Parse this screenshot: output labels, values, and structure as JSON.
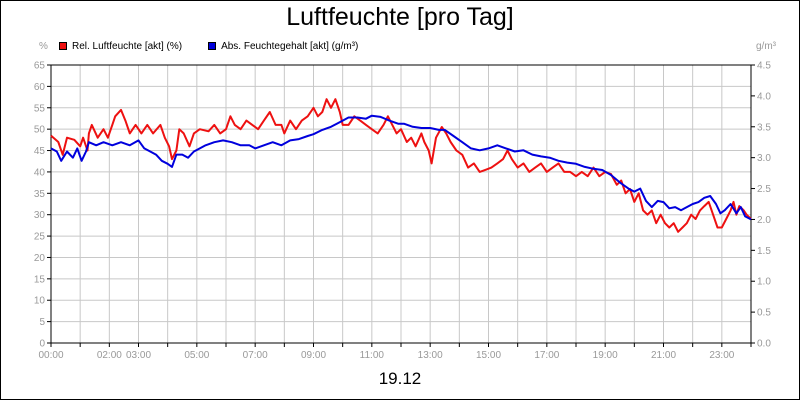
{
  "chart_data": {
    "type": "line",
    "title": "Luftfeuchte [pro Tag]",
    "date_label": "19.12",
    "left_unit": "%",
    "right_unit": "g/m³",
    "y_left": {
      "min": 0,
      "max": 65,
      "ticks": [
        0,
        5,
        10,
        15,
        20,
        25,
        30,
        35,
        40,
        45,
        50,
        55,
        60,
        65
      ]
    },
    "y_right": {
      "min": 0,
      "max": 4.5,
      "ticks": [
        "0.0",
        "0.5",
        "1.0",
        "1.5",
        "2.0",
        "2.5",
        "3.0",
        "3.5",
        "4.0",
        "4.5"
      ]
    },
    "x_range_hours": [
      0,
      24
    ],
    "x_tick_labels": [
      {
        "label": "00:00",
        "hour": 0
      },
      {
        "label": "02:00",
        "hour": 2
      },
      {
        "label": "03:00",
        "hour": 3
      },
      {
        "label": "05:00",
        "hour": 5
      },
      {
        "label": "07:00",
        "hour": 7
      },
      {
        "label": "09:00",
        "hour": 9
      },
      {
        "label": "11:00",
        "hour": 11
      },
      {
        "label": "13:00",
        "hour": 13
      },
      {
        "label": "15:00",
        "hour": 15
      },
      {
        "label": "17:00",
        "hour": 17
      },
      {
        "label": "19:00",
        "hour": 19
      },
      {
        "label": "21:00",
        "hour": 21
      },
      {
        "label": "23:00",
        "hour": 23
      }
    ],
    "grid": true,
    "legend_position": "top-left",
    "series": [
      {
        "name": "Rel. Luftfeuchte [akt] (%)",
        "axis": "left",
        "color": "#ee1111",
        "points": [
          [
            0,
            48.5
          ],
          [
            0.25,
            47
          ],
          [
            0.4,
            44
          ],
          [
            0.55,
            48
          ],
          [
            0.8,
            47.5
          ],
          [
            1.0,
            46
          ],
          [
            1.1,
            48
          ],
          [
            1.25,
            45
          ],
          [
            1.3,
            49
          ],
          [
            1.4,
            51
          ],
          [
            1.6,
            48
          ],
          [
            1.8,
            50
          ],
          [
            1.95,
            48
          ],
          [
            2.1,
            51
          ],
          [
            2.2,
            53
          ],
          [
            2.4,
            54.5
          ],
          [
            2.55,
            52
          ],
          [
            2.7,
            49
          ],
          [
            2.9,
            51
          ],
          [
            3.1,
            49
          ],
          [
            3.3,
            51
          ],
          [
            3.5,
            49
          ],
          [
            3.75,
            51
          ],
          [
            3.9,
            48
          ],
          [
            4.05,
            46
          ],
          [
            4.15,
            43
          ],
          [
            4.3,
            45
          ],
          [
            4.4,
            50
          ],
          [
            4.55,
            49
          ],
          [
            4.75,
            46
          ],
          [
            4.9,
            49
          ],
          [
            5.1,
            50
          ],
          [
            5.4,
            49.5
          ],
          [
            5.6,
            51
          ],
          [
            5.8,
            49
          ],
          [
            6.0,
            50
          ],
          [
            6.15,
            53
          ],
          [
            6.3,
            51
          ],
          [
            6.5,
            50
          ],
          [
            6.7,
            52
          ],
          [
            6.9,
            51
          ],
          [
            7.1,
            50
          ],
          [
            7.3,
            52
          ],
          [
            7.5,
            54
          ],
          [
            7.7,
            51
          ],
          [
            7.9,
            51
          ],
          [
            8.0,
            49
          ],
          [
            8.2,
            52
          ],
          [
            8.4,
            50
          ],
          [
            8.6,
            52
          ],
          [
            8.8,
            53
          ],
          [
            9.0,
            55
          ],
          [
            9.15,
            53
          ],
          [
            9.3,
            54
          ],
          [
            9.45,
            57
          ],
          [
            9.6,
            55
          ],
          [
            9.75,
            57
          ],
          [
            9.9,
            54
          ],
          [
            10.0,
            51
          ],
          [
            10.2,
            51
          ],
          [
            10.4,
            53
          ],
          [
            10.6,
            52
          ],
          [
            10.8,
            51
          ],
          [
            11.0,
            50
          ],
          [
            11.2,
            49
          ],
          [
            11.4,
            51
          ],
          [
            11.55,
            53
          ],
          [
            11.7,
            51
          ],
          [
            11.85,
            49
          ],
          [
            12.0,
            50
          ],
          [
            12.2,
            47
          ],
          [
            12.35,
            48
          ],
          [
            12.5,
            46
          ],
          [
            12.7,
            49
          ],
          [
            12.8,
            47
          ],
          [
            12.95,
            45
          ],
          [
            13.05,
            42
          ],
          [
            13.2,
            48
          ],
          [
            13.4,
            50.5
          ],
          [
            13.55,
            49
          ],
          [
            13.7,
            47
          ],
          [
            13.9,
            45
          ],
          [
            14.1,
            44
          ],
          [
            14.3,
            41
          ],
          [
            14.5,
            42
          ],
          [
            14.7,
            40
          ],
          [
            14.9,
            40.5
          ],
          [
            15.1,
            41
          ],
          [
            15.3,
            42
          ],
          [
            15.5,
            43
          ],
          [
            15.65,
            45
          ],
          [
            15.8,
            43
          ],
          [
            16.0,
            41
          ],
          [
            16.2,
            42
          ],
          [
            16.4,
            40
          ],
          [
            16.6,
            41
          ],
          [
            16.8,
            42
          ],
          [
            17.0,
            40
          ],
          [
            17.2,
            41
          ],
          [
            17.4,
            42
          ],
          [
            17.6,
            40
          ],
          [
            17.8,
            40
          ],
          [
            18.0,
            39
          ],
          [
            18.2,
            40
          ],
          [
            18.4,
            39
          ],
          [
            18.6,
            41
          ],
          [
            18.8,
            39
          ],
          [
            19.0,
            40
          ],
          [
            19.2,
            39.5
          ],
          [
            19.4,
            37
          ],
          [
            19.55,
            38
          ],
          [
            19.7,
            35
          ],
          [
            19.85,
            36
          ],
          [
            20.0,
            33
          ],
          [
            20.15,
            35
          ],
          [
            20.3,
            31
          ],
          [
            20.45,
            30
          ],
          [
            20.6,
            31
          ],
          [
            20.75,
            28
          ],
          [
            20.9,
            30
          ],
          [
            21.05,
            28
          ],
          [
            21.2,
            27
          ],
          [
            21.35,
            28
          ],
          [
            21.5,
            26
          ],
          [
            21.65,
            27
          ],
          [
            21.8,
            28
          ],
          [
            21.95,
            30
          ],
          [
            22.1,
            29
          ],
          [
            22.25,
            31
          ],
          [
            22.4,
            32
          ],
          [
            22.55,
            33
          ],
          [
            22.7,
            30
          ],
          [
            22.85,
            27
          ],
          [
            23.0,
            27
          ],
          [
            23.15,
            29
          ],
          [
            23.3,
            31
          ],
          [
            23.4,
            33
          ],
          [
            23.5,
            30
          ],
          [
            23.6,
            32
          ],
          [
            23.75,
            31
          ],
          [
            23.85,
            30
          ],
          [
            24.0,
            29
          ]
        ]
      },
      {
        "name": "Abs. Feuchtegehalt [akt] (g/m³)",
        "axis": "right",
        "color": "#0000dd",
        "points": [
          [
            0,
            3.15
          ],
          [
            0.2,
            3.1
          ],
          [
            0.35,
            2.95
          ],
          [
            0.55,
            3.1
          ],
          [
            0.75,
            3.0
          ],
          [
            0.9,
            3.15
          ],
          [
            1.05,
            2.95
          ],
          [
            1.2,
            3.1
          ],
          [
            1.3,
            3.25
          ],
          [
            1.55,
            3.2
          ],
          [
            1.8,
            3.25
          ],
          [
            2.1,
            3.2
          ],
          [
            2.4,
            3.25
          ],
          [
            2.7,
            3.2
          ],
          [
            3.0,
            3.28
          ],
          [
            3.2,
            3.15
          ],
          [
            3.4,
            3.1
          ],
          [
            3.6,
            3.05
          ],
          [
            3.8,
            2.95
          ],
          [
            4.0,
            2.9
          ],
          [
            4.15,
            2.85
          ],
          [
            4.3,
            3.05
          ],
          [
            4.5,
            3.05
          ],
          [
            4.7,
            3.0
          ],
          [
            4.9,
            3.1
          ],
          [
            5.1,
            3.15
          ],
          [
            5.3,
            3.2
          ],
          [
            5.6,
            3.25
          ],
          [
            5.9,
            3.28
          ],
          [
            6.2,
            3.25
          ],
          [
            6.5,
            3.2
          ],
          [
            6.8,
            3.2
          ],
          [
            7.0,
            3.15
          ],
          [
            7.3,
            3.2
          ],
          [
            7.6,
            3.25
          ],
          [
            7.9,
            3.2
          ],
          [
            8.2,
            3.28
          ],
          [
            8.5,
            3.3
          ],
          [
            8.8,
            3.35
          ],
          [
            9.0,
            3.38
          ],
          [
            9.3,
            3.45
          ],
          [
            9.6,
            3.5
          ],
          [
            9.8,
            3.55
          ],
          [
            10.0,
            3.6
          ],
          [
            10.2,
            3.65
          ],
          [
            10.5,
            3.65
          ],
          [
            10.8,
            3.63
          ],
          [
            11.0,
            3.68
          ],
          [
            11.3,
            3.66
          ],
          [
            11.6,
            3.6
          ],
          [
            11.9,
            3.55
          ],
          [
            12.1,
            3.55
          ],
          [
            12.4,
            3.5
          ],
          [
            12.7,
            3.48
          ],
          [
            13.0,
            3.48
          ],
          [
            13.3,
            3.45
          ],
          [
            13.5,
            3.45
          ],
          [
            13.8,
            3.35
          ],
          [
            14.1,
            3.25
          ],
          [
            14.4,
            3.15
          ],
          [
            14.7,
            3.12
          ],
          [
            15.0,
            3.15
          ],
          [
            15.3,
            3.2
          ],
          [
            15.6,
            3.15
          ],
          [
            15.9,
            3.1
          ],
          [
            16.2,
            3.12
          ],
          [
            16.5,
            3.05
          ],
          [
            16.8,
            3.02
          ],
          [
            17.1,
            3.0
          ],
          [
            17.4,
            2.95
          ],
          [
            17.7,
            2.92
          ],
          [
            18.0,
            2.9
          ],
          [
            18.3,
            2.85
          ],
          [
            18.6,
            2.82
          ],
          [
            18.9,
            2.8
          ],
          [
            19.2,
            2.72
          ],
          [
            19.5,
            2.6
          ],
          [
            19.8,
            2.5
          ],
          [
            20.0,
            2.45
          ],
          [
            20.2,
            2.5
          ],
          [
            20.4,
            2.3
          ],
          [
            20.6,
            2.2
          ],
          [
            20.8,
            2.3
          ],
          [
            21.0,
            2.28
          ],
          [
            21.2,
            2.18
          ],
          [
            21.4,
            2.2
          ],
          [
            21.6,
            2.15
          ],
          [
            21.8,
            2.2
          ],
          [
            22.0,
            2.25
          ],
          [
            22.2,
            2.28
          ],
          [
            22.4,
            2.35
          ],
          [
            22.6,
            2.38
          ],
          [
            22.8,
            2.25
          ],
          [
            22.95,
            2.1
          ],
          [
            23.1,
            2.15
          ],
          [
            23.3,
            2.25
          ],
          [
            23.5,
            2.1
          ],
          [
            23.65,
            2.2
          ],
          [
            23.8,
            2.05
          ],
          [
            24.0,
            2.0
          ]
        ]
      }
    ]
  }
}
